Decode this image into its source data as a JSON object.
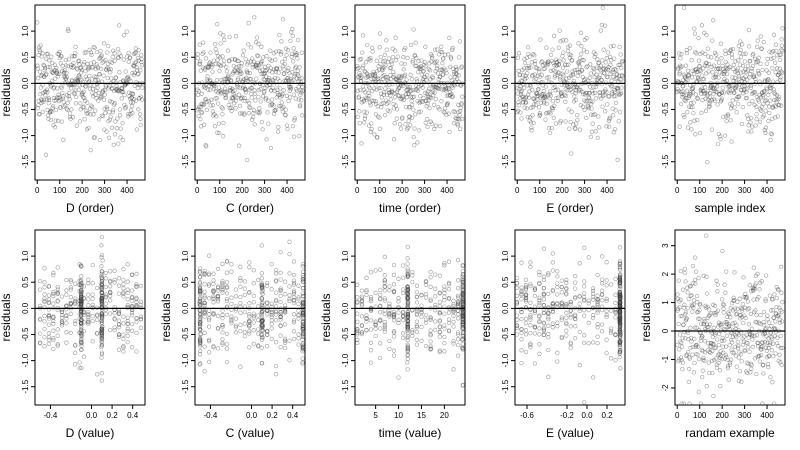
{
  "chart_data": [
    {
      "type": "scatter",
      "xlabel": "D (order)",
      "ylabel": "residuals",
      "xticks": [
        "0",
        "100",
        "200",
        "300",
        "400"
      ],
      "yticks": [
        "1.0",
        "0.5",
        "0.0",
        "-0.5",
        "-1.0",
        "-1.5"
      ],
      "xlim": [
        -10,
        480
      ],
      "ylim": [
        -1.85,
        1.5
      ],
      "baseline": 0,
      "x_kind": "order",
      "n_points": 470
    },
    {
      "type": "scatter",
      "xlabel": "C (order)",
      "ylabel": "residuals",
      "xticks": [
        "0",
        "100",
        "200",
        "300",
        "400"
      ],
      "yticks": [
        "1.0",
        "0.5",
        "0.0",
        "-0.5",
        "-1.0",
        "-1.5"
      ],
      "xlim": [
        -10,
        480
      ],
      "ylim": [
        -1.85,
        1.5
      ],
      "baseline": 0,
      "x_kind": "order",
      "n_points": 470
    },
    {
      "type": "scatter",
      "xlabel": "time (order)",
      "ylabel": "residuals",
      "xticks": [
        "0",
        "100",
        "200",
        "300",
        "400"
      ],
      "yticks": [
        "1.0",
        "0.5",
        "0.0",
        "-0.5",
        "-1.0",
        "-1.5"
      ],
      "xlim": [
        -10,
        480
      ],
      "ylim": [
        -1.85,
        1.5
      ],
      "baseline": 0,
      "x_kind": "order",
      "n_points": 470
    },
    {
      "type": "scatter",
      "xlabel": "E (order)",
      "ylabel": "residuals",
      "xticks": [
        "0",
        "100",
        "200",
        "300",
        "400"
      ],
      "yticks": [
        "1.0",
        "0.5",
        "0.0",
        "-0.5",
        "-1.0",
        "-1.5"
      ],
      "xlim": [
        -10,
        480
      ],
      "ylim": [
        -1.85,
        1.5
      ],
      "baseline": 0,
      "x_kind": "order",
      "n_points": 470
    },
    {
      "type": "scatter",
      "xlabel": "sample index",
      "ylabel": "residuals",
      "xticks": [
        "0",
        "100",
        "200",
        "300",
        "400"
      ],
      "yticks": [
        "1.0",
        "0.5",
        "0.0",
        "-0.5",
        "-1.0",
        "-1.5"
      ],
      "xlim": [
        -10,
        480
      ],
      "ylim": [
        -1.85,
        1.5
      ],
      "baseline": 0,
      "x_kind": "order",
      "n_points": 470
    },
    {
      "type": "scatter",
      "xlabel": "D (value)",
      "ylabel": "residuals",
      "xticks": [
        "-0.4",
        "0.0",
        "0.2",
        "0.4"
      ],
      "xtick_values": [
        -0.4,
        0.0,
        0.2,
        0.4
      ],
      "yticks": [
        "1.0",
        "0.5",
        "0.0",
        "-0.5",
        "-1.0",
        "-1.5"
      ],
      "xlim": [
        -0.55,
        0.52
      ],
      "ylim": [
        -1.85,
        1.5
      ],
      "baseline": 0,
      "x_kind": "value",
      "x_range": [
        -0.5,
        0.48
      ],
      "x_clusters": [
        -0.1,
        0.1
      ],
      "n_points": 470
    },
    {
      "type": "scatter",
      "xlabel": "C (value)",
      "ylabel": "residuals",
      "xticks": [
        "-0.4",
        "0.0",
        "0.2",
        "0.4"
      ],
      "xtick_values": [
        -0.4,
        0.0,
        0.2,
        0.4
      ],
      "yticks": [
        "1.0",
        "0.5",
        "0.0",
        "-0.5",
        "-1.0",
        "-1.5"
      ],
      "xlim": [
        -0.55,
        0.52
      ],
      "ylim": [
        -1.85,
        1.5
      ],
      "baseline": 0,
      "x_kind": "value",
      "x_range": [
        -0.5,
        0.5
      ],
      "x_clusters": [
        -0.5,
        0.1,
        0.5
      ],
      "n_points": 470
    },
    {
      "type": "scatter",
      "xlabel": "time (value)",
      "ylabel": "residuals",
      "xticks": [
        "5",
        "10",
        "15",
        "20"
      ],
      "xtick_values": [
        5,
        10,
        15,
        20
      ],
      "yticks": [
        "1.0",
        "0.5",
        "0.0",
        "-0.5",
        "-1.0",
        "-1.5"
      ],
      "xlim": [
        0.5,
        24.5
      ],
      "ylim": [
        -1.85,
        1.5
      ],
      "baseline": 0,
      "x_kind": "value",
      "x_range": [
        1,
        24
      ],
      "x_clusters": [
        12,
        24
      ],
      "n_points": 470
    },
    {
      "type": "scatter",
      "xlabel": "E (value)",
      "ylabel": "residuals",
      "xticks": [
        "-0.6",
        "-0.2",
        "0.0",
        "0.2"
      ],
      "xtick_values": [
        -0.6,
        -0.2,
        0.0,
        0.2
      ],
      "yticks": [
        "1.0",
        "0.5",
        "0.0",
        "-0.5",
        "-1.0",
        "-1.5"
      ],
      "xlim": [
        -0.72,
        0.38
      ],
      "ylim": [
        -1.85,
        1.5
      ],
      "baseline": 0,
      "x_kind": "value",
      "x_range": [
        -0.7,
        0.33
      ],
      "x_clusters": [
        0.33
      ],
      "n_points": 470
    },
    {
      "type": "scatter",
      "xlabel": "randam example",
      "ylabel": "residuals",
      "xticks": [
        "0",
        "100",
        "200",
        "300",
        "400"
      ],
      "yticks": [
        "3",
        "2",
        "1",
        "0",
        "-1",
        "-2"
      ],
      "xlim": [
        -10,
        480
      ],
      "ylim": [
        -2.6,
        3.55
      ],
      "baseline": 0,
      "x_kind": "order",
      "n_points": 470
    }
  ]
}
